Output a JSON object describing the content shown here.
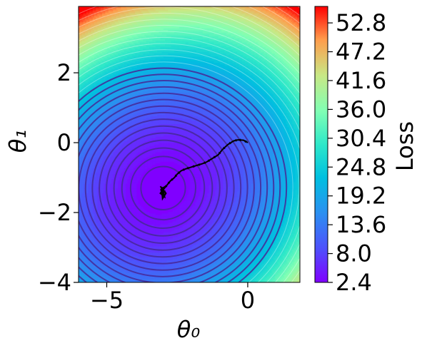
{
  "chart_data": {
    "type": "contour",
    "title": "",
    "xlabel": "θ₀",
    "ylabel": "θ₁",
    "xlim": [
      -6,
      1.85
    ],
    "ylim": [
      -4,
      3.9
    ],
    "x_ticks": [
      -5,
      0
    ],
    "x_tick_labels": [
      "−5",
      "0"
    ],
    "y_ticks": [
      -4,
      -2,
      0,
      2
    ],
    "y_tick_labels": [
      "−4",
      "−2",
      "0",
      "2"
    ],
    "loss_function": {
      "minimum": [
        -3.0,
        -1.3
      ],
      "min_loss": 2.4
    },
    "colorbar": {
      "label": "Loss",
      "range": [
        2.4,
        56.0
      ],
      "ticks": [
        2.4,
        8.0,
        13.6,
        19.2,
        24.8,
        30.4,
        36.0,
        41.6,
        47.2,
        52.8
      ],
      "tick_labels": [
        "2.4",
        "8.0",
        "13.6",
        "19.2",
        "24.8",
        "30.4",
        "36.0",
        "41.6",
        "47.2",
        "52.8"
      ],
      "colormap": "rainbow"
    },
    "trajectory": {
      "color": "#000000",
      "points": [
        [
          0.0,
          0.0
        ],
        [
          -0.15,
          0.07
        ],
        [
          -0.35,
          0.08
        ],
        [
          -0.5,
          0.05
        ],
        [
          -0.7,
          -0.05
        ],
        [
          -0.9,
          -0.2
        ],
        [
          -1.05,
          -0.35
        ],
        [
          -1.25,
          -0.45
        ],
        [
          -1.45,
          -0.55
        ],
        [
          -1.6,
          -0.6
        ],
        [
          -1.8,
          -0.65
        ],
        [
          -2.0,
          -0.7
        ],
        [
          -2.2,
          -0.75
        ],
        [
          -2.35,
          -0.8
        ],
        [
          -2.5,
          -0.9
        ],
        [
          -2.6,
          -1.0
        ],
        [
          -2.75,
          -1.1
        ],
        [
          -2.85,
          -1.2
        ],
        [
          -2.95,
          -1.3
        ],
        [
          -3.05,
          -1.4
        ],
        [
          -2.98,
          -1.5
        ],
        [
          -3.08,
          -1.35
        ],
        [
          -2.92,
          -1.25
        ],
        [
          -3.1,
          -1.45
        ],
        [
          -2.95,
          -1.55
        ],
        [
          -3.0,
          -1.35
        ],
        [
          -3.1,
          -1.25
        ],
        [
          -2.9,
          -1.45
        ],
        [
          -3.02,
          -1.6
        ],
        [
          -3.05,
          -1.3
        ]
      ]
    }
  }
}
